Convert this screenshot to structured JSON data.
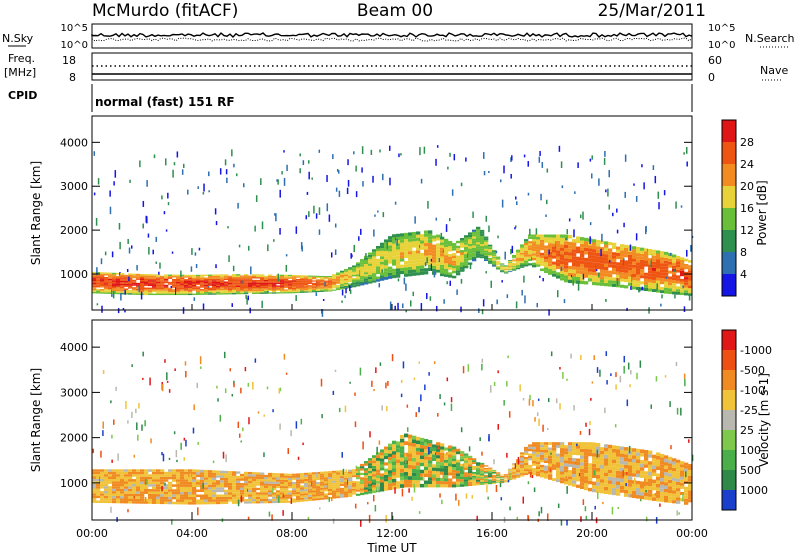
{
  "header": {
    "site": "McMurdo (fitACF)",
    "beam": "Beam 00",
    "date": "25/Mar/2011"
  },
  "status_panels": {
    "nsky": {
      "label": "N.Sky",
      "ticks": [
        "10^5",
        "10^0"
      ]
    },
    "nsearch": {
      "label": "N.Search",
      "ticks": [
        "10^5",
        "10^0"
      ],
      "line_style": "dotted"
    },
    "freq": {
      "label_line1": "Freq.",
      "label_line2": "[MHz]",
      "ticks": [
        "18",
        "8"
      ]
    },
    "nave": {
      "label": "Nave",
      "ticks": [
        "60",
        "0"
      ],
      "line_style": "dotted"
    },
    "cpid": {
      "label": "CPID",
      "mode": "normal (fast) 151 RF"
    }
  },
  "chart_data": [
    {
      "type": "heatmap",
      "title": "",
      "xlabel": "",
      "ylabel": "Slant Range [km]",
      "xlim": [
        0,
        24
      ],
      "ylim": [
        180,
        4600
      ],
      "yticks": [
        "1000",
        "2000",
        "3000",
        "4000"
      ],
      "colorbar": {
        "label": "Power [dB]",
        "tick_labels": [
          "4",
          "8",
          "12",
          "16",
          "20",
          "24",
          "28"
        ],
        "colors": [
          "#1515e6",
          "#2d6fb0",
          "#2f8f4f",
          "#6abf3a",
          "#e8d23a",
          "#f28b22",
          "#ee5512",
          "#e01515"
        ]
      },
      "bands": [
        {
          "t": 0.0,
          "lo": 560,
          "hi": 1050,
          "level": 0.92
        },
        {
          "t": 2.0,
          "lo": 520,
          "hi": 1000,
          "level": 0.95
        },
        {
          "t": 4.0,
          "lo": 520,
          "hi": 980,
          "level": 0.93
        },
        {
          "t": 6.0,
          "lo": 540,
          "hi": 1000,
          "level": 0.92
        },
        {
          "t": 8.0,
          "lo": 560,
          "hi": 980,
          "level": 0.9
        },
        {
          "t": 9.5,
          "lo": 600,
          "hi": 950,
          "level": 0.8
        },
        {
          "t": 10.5,
          "lo": 700,
          "hi": 1200,
          "level": 0.55
        },
        {
          "t": 12.0,
          "lo": 900,
          "hi": 1900,
          "level": 0.55
        },
        {
          "t": 13.5,
          "lo": 1000,
          "hi": 2000,
          "level": 0.65
        },
        {
          "t": 14.5,
          "lo": 900,
          "hi": 1700,
          "level": 0.65
        },
        {
          "t": 15.5,
          "lo": 1400,
          "hi": 2100,
          "level": 0.45
        },
        {
          "t": 16.5,
          "lo": 1000,
          "hi": 1150,
          "level": 0.6
        },
        {
          "t": 17.5,
          "lo": 1200,
          "hi": 1900,
          "level": 0.7
        },
        {
          "t": 19.0,
          "lo": 800,
          "hi": 1900,
          "level": 0.85
        },
        {
          "t": 21.0,
          "lo": 700,
          "hi": 1700,
          "level": 0.85
        },
        {
          "t": 23.0,
          "lo": 550,
          "hi": 1500,
          "level": 0.85
        },
        {
          "t": 24.0,
          "lo": 500,
          "hi": 1300,
          "level": 0.9
        }
      ]
    },
    {
      "type": "heatmap",
      "title": "",
      "xlabel": "Time UT",
      "ylabel": "Slant Range [km]",
      "xlim": [
        0,
        24
      ],
      "ylim": [
        180,
        4600
      ],
      "yticks": [
        "1000",
        "2000",
        "3000",
        "4000"
      ],
      "xticks": [
        "00:00",
        "04:00",
        "08:00",
        "12:00",
        "16:00",
        "20:00",
        "00:00"
      ],
      "colorbar": {
        "label": "Velocity [m s-1]",
        "tick_labels": [
          "1000",
          "500",
          "100",
          "25",
          "-25",
          "-100",
          "-500",
          "-1000"
        ],
        "colors": [
          "#1a3fcc",
          "#2f8a4a",
          "#4aaf4a",
          "#7ec84c",
          "#b8b8b0",
          "#f0c33a",
          "#f08a22",
          "#ee5014",
          "#e01818"
        ]
      },
      "bands": [
        {
          "t": 0.0,
          "lo": 560,
          "hi": 1300
        },
        {
          "t": 4.0,
          "lo": 520,
          "hi": 1300
        },
        {
          "t": 8.0,
          "lo": 560,
          "hi": 1200
        },
        {
          "t": 10.5,
          "lo": 700,
          "hi": 1300
        },
        {
          "t": 12.5,
          "lo": 900,
          "hi": 2100
        },
        {
          "t": 14.5,
          "lo": 900,
          "hi": 1800
        },
        {
          "t": 16.5,
          "lo": 1000,
          "hi": 1150
        },
        {
          "t": 17.5,
          "lo": 1200,
          "hi": 1900
        },
        {
          "t": 20.0,
          "lo": 800,
          "hi": 1900
        },
        {
          "t": 22.5,
          "lo": 600,
          "hi": 1700
        },
        {
          "t": 24.0,
          "lo": 500,
          "hi": 1400
        }
      ]
    }
  ]
}
